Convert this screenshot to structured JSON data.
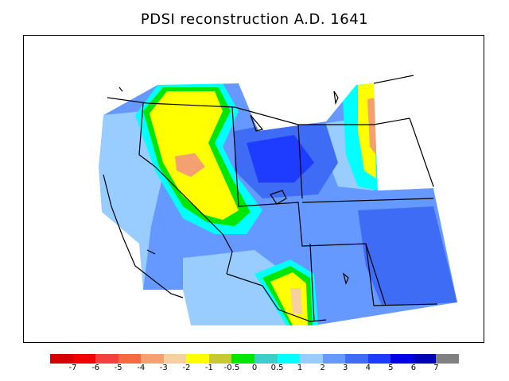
{
  "title": "PDSI reconstruction A.D. 1641",
  "legend": {
    "colors": [
      "#d60000",
      "#f20000",
      "#f54040",
      "#f56a40",
      "#f5a070",
      "#f8cfa0",
      "#ffff00",
      "#c8c832",
      "#00e600",
      "#3ecdc8",
      "#00ffff",
      "#99ccff",
      "#6699ff",
      "#3f6cf5",
      "#1e3cff",
      "#0000e6",
      "#0000b4",
      "#808080"
    ],
    "labels": [
      "-7",
      "-6",
      "-5",
      "-4",
      "-3",
      "-2",
      "-1",
      "-0.5",
      "0",
      "0.5",
      "1",
      "2",
      "3",
      "4",
      "5",
      "6",
      "7"
    ]
  }
}
